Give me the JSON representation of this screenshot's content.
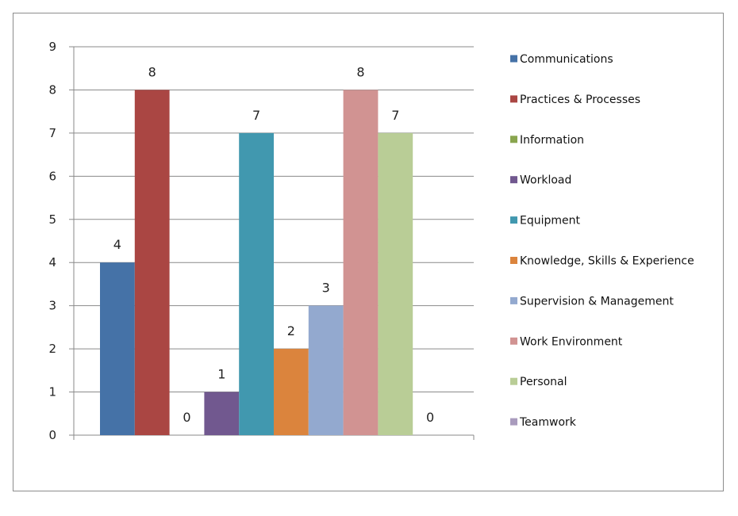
{
  "chart_data": {
    "type": "bar",
    "title": "",
    "xlabel": "",
    "ylabel": "",
    "ylim": [
      0,
      9
    ],
    "yticks": [
      0,
      1,
      2,
      3,
      4,
      5,
      6,
      7,
      8,
      9
    ],
    "grid": true,
    "legend_position": "right",
    "series": [
      {
        "name": "Communications",
        "value": 4,
        "color": "#4572A7"
      },
      {
        "name": "Practices & Processes",
        "value": 8,
        "color": "#AA4643"
      },
      {
        "name": "Information",
        "value": 0,
        "color": "#89A54E"
      },
      {
        "name": "Workload",
        "value": 1,
        "color": "#71588F"
      },
      {
        "name": "Equipment",
        "value": 7,
        "color": "#4198AF"
      },
      {
        "name": "Knowledge, Skills & Experience",
        "value": 2,
        "color": "#DB843D"
      },
      {
        "name": "Supervision & Management",
        "value": 3,
        "color": "#93A9CF"
      },
      {
        "name": "Work Environment",
        "value": 8,
        "color": "#D19392"
      },
      {
        "name": "Personal",
        "value": 7,
        "color": "#B9CD96"
      },
      {
        "name": "Teamwork",
        "value": 0,
        "color": "#A99BBD"
      }
    ]
  }
}
